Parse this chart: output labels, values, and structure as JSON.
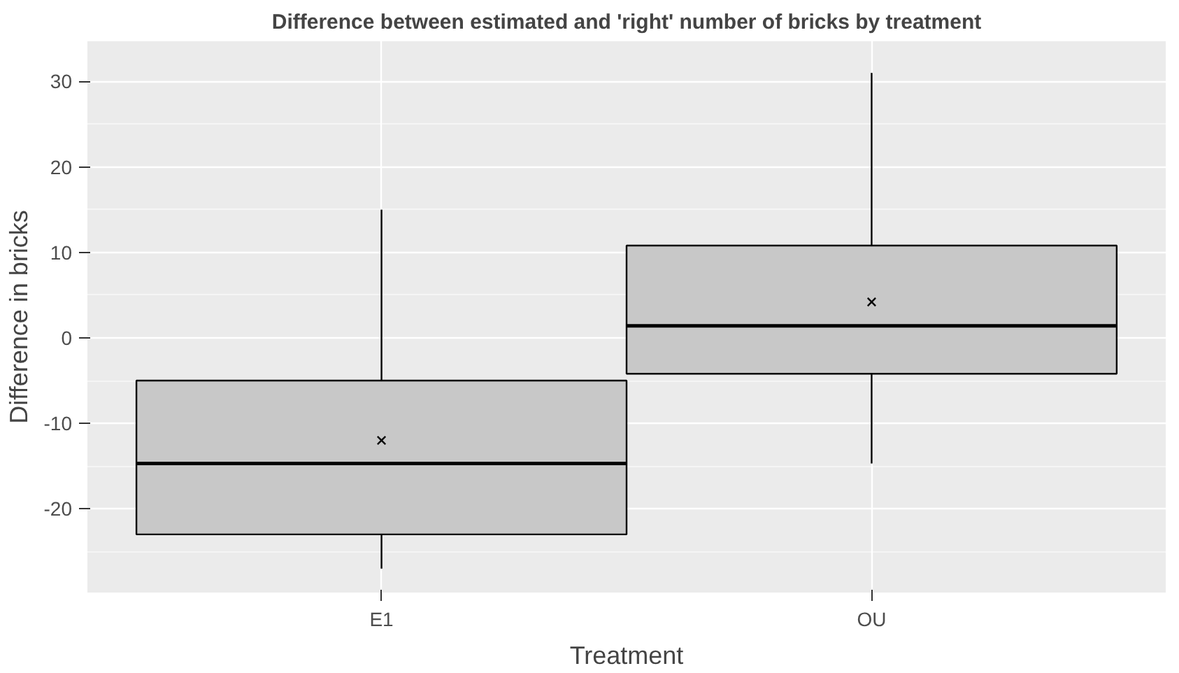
{
  "chart_data": {
    "type": "box",
    "title": "Difference between estimated and 'right' number of bricks by treatment",
    "xlabel": "Treatment",
    "ylabel": "Difference in bricks",
    "categories": [
      "E1",
      "OU"
    ],
    "boxes": [
      {
        "low": -27,
        "q1": -23,
        "median": -14.7,
        "q3": -5,
        "high": 15,
        "mean": -12
      },
      {
        "low": -14.7,
        "q1": -4.2,
        "median": 1.4,
        "q3": 10.8,
        "high": 31,
        "mean": 4.2
      }
    ],
    "color": "#c8c8c8",
    "ylim": [
      -29.8,
      34.7
    ],
    "yticks": [
      -20,
      -10,
      0,
      10,
      20,
      30
    ],
    "grid": true
  }
}
